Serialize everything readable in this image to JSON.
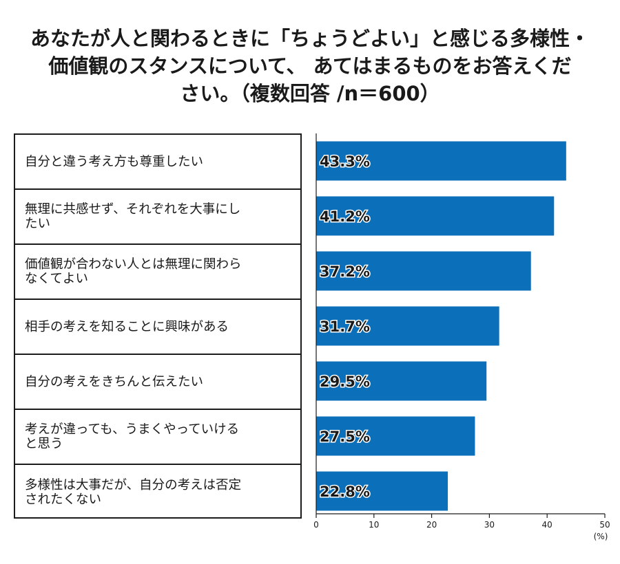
{
  "title_lines": [
    "あなたが人と関わるときに「ちょうどよい」と感じる多様性・",
    "価値観のスタンスについて、 あてはまるものをお答えくだ",
    "さい。（複数回答 /n＝600）"
  ],
  "chart_data": {
    "type": "bar",
    "orientation": "horizontal",
    "categories": [
      "自分と違う考え方も尊重したい",
      "無理に共感せず、それぞれを大事にしたい",
      "価値観が合わない人とは無理に関わらなくてよい",
      "相手の考えを知ることに興味がある",
      "自分の考えをきちんと伝えたい",
      "考えが違っても、うまくやっていけると思う",
      "多様性は大事だが、自分の考えは否定されたくない"
    ],
    "category_lines": [
      [
        "自分と違う考え方も尊重したい"
      ],
      [
        "無理に共感せず、それぞれを大事にし",
        "たい"
      ],
      [
        "価値観が合わない人とは無理に関わら",
        "なくてよい"
      ],
      [
        "相手の考えを知ることに興味がある"
      ],
      [
        "自分の考えをきちんと伝えたい"
      ],
      [
        "考えが違っても、うまくやっていける",
        "と思う"
      ],
      [
        "多様性は大事だが、自分の考えは否定",
        "されたくない"
      ]
    ],
    "values": [
      43.3,
      41.2,
      37.2,
      31.7,
      29.5,
      27.5,
      22.8
    ],
    "value_labels": [
      "43.3%",
      "41.2%",
      "37.2%",
      "31.7%",
      "29.5%",
      "27.5%",
      "22.8%"
    ],
    "xlim": [
      0,
      50
    ],
    "xticks": [
      0,
      10,
      20,
      30,
      40,
      50
    ],
    "unit_label": "(%)",
    "bar_color": "#0b6fba",
    "grid": false
  }
}
